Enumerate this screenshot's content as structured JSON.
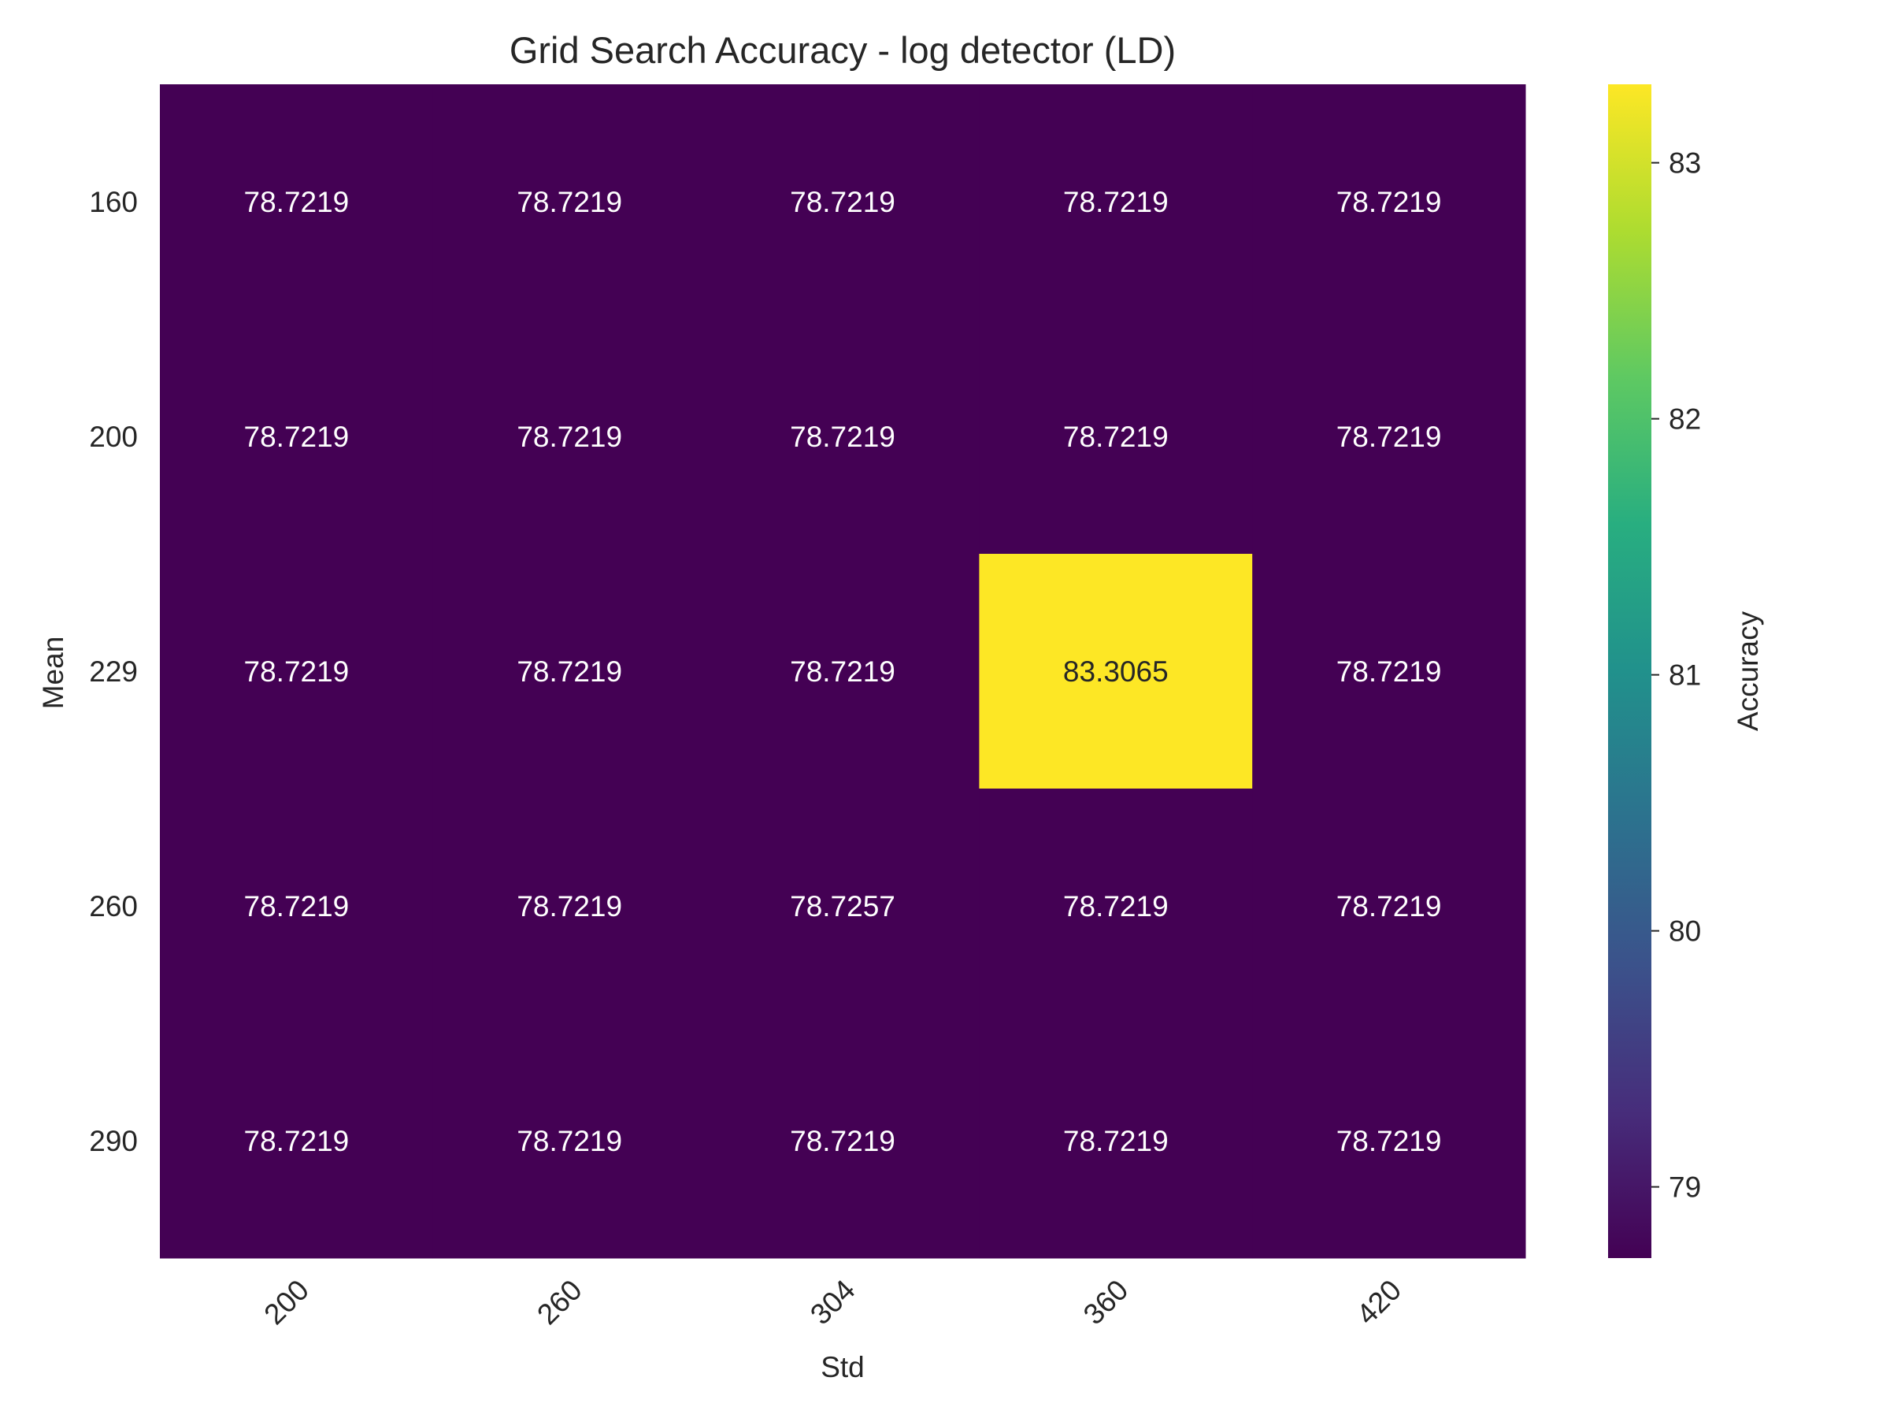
{
  "chart_data": {
    "type": "heatmap",
    "title": "Grid Search Accuracy - log detector (LD)",
    "xlabel": "Std",
    "ylabel": "Mean",
    "x_categories": [
      "200",
      "260",
      "304",
      "360",
      "420"
    ],
    "y_categories": [
      "160",
      "200",
      "229",
      "260",
      "290"
    ],
    "values": [
      [
        78.7219,
        78.7219,
        78.7219,
        78.7219,
        78.7219
      ],
      [
        78.7219,
        78.7219,
        78.7219,
        78.7219,
        78.7219
      ],
      [
        78.7219,
        78.7219,
        78.7219,
        83.3065,
        78.7219
      ],
      [
        78.7219,
        78.7219,
        78.7257,
        78.7219,
        78.7219
      ],
      [
        78.7219,
        78.7219,
        78.7219,
        78.7219,
        78.7219
      ]
    ],
    "cell_labels": [
      [
        "78.7219",
        "78.7219",
        "78.7219",
        "78.7219",
        "78.7219"
      ],
      [
        "78.7219",
        "78.7219",
        "78.7219",
        "78.7219",
        "78.7219"
      ],
      [
        "78.7219",
        "78.7219",
        "78.7219",
        "83.3065",
        "78.7219"
      ],
      [
        "78.7219",
        "78.7219",
        "78.7257",
        "78.7219",
        "78.7219"
      ],
      [
        "78.7219",
        "78.7219",
        "78.7219",
        "78.7219",
        "78.7219"
      ]
    ],
    "colormap": "viridis",
    "vmin": 78.7219,
    "vmax": 83.3065,
    "colorbar": {
      "label": "Accuracy",
      "ticks": [
        79,
        80,
        81,
        82,
        83
      ],
      "tick_labels": [
        "79",
        "80",
        "81",
        "82",
        "83"
      ]
    },
    "grid": false,
    "x_tick_rotation_deg": 45
  }
}
